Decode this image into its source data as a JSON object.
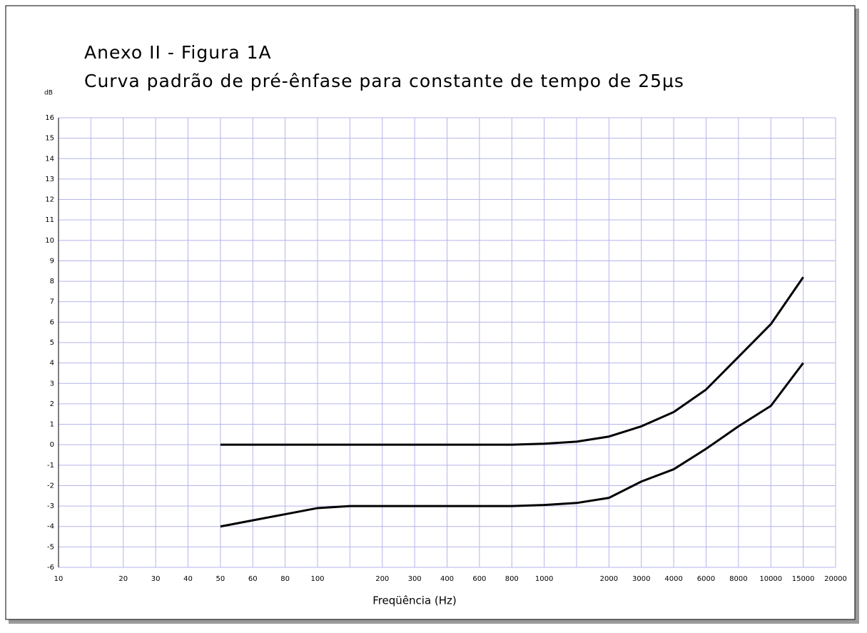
{
  "chart_data": {
    "type": "line",
    "title": [
      "Anexo II - Figura 1A",
      "Curva padrão de pré-ênfase para constante de tempo de 25µs"
    ],
    "y_label": "dB",
    "x_label": "Freqüência (Hz)",
    "categories": [
      "10",
      null,
      "20",
      "30",
      "40",
      "50",
      "60",
      "80",
      "100",
      null,
      "200",
      "300",
      "400",
      "600",
      "800",
      "1000",
      null,
      "2000",
      "3000",
      "4000",
      "6000",
      "8000",
      "10000",
      "15000",
      "20000"
    ],
    "series": [
      {
        "color": "#000000",
        "values": [
          null,
          null,
          null,
          null,
          null,
          0,
          0,
          0,
          0,
          0,
          0,
          0,
          0,
          0,
          0,
          0.05,
          0.15,
          0.4,
          0.9,
          1.6,
          2.7,
          4.3,
          5.9,
          8.2,
          null
        ]
      },
      {
        "color": "#000000",
        "values": [
          null,
          null,
          null,
          null,
          null,
          -4,
          -3.7,
          -3.4,
          -3.1,
          -3,
          -3,
          -3,
          -3,
          -3,
          -3,
          -2.95,
          -2.85,
          -2.6,
          -1.8,
          -1.2,
          -0.2,
          0.9,
          1.9,
          4.0,
          null
        ]
      }
    ],
    "ylim": [
      -6,
      16
    ],
    "yticks": [
      -6,
      -5,
      -4,
      -3,
      -2,
      -1,
      0,
      1,
      2,
      3,
      4,
      5,
      6,
      7,
      8,
      9,
      10,
      11,
      12,
      13,
      14,
      15,
      16
    ],
    "grid": true
  }
}
